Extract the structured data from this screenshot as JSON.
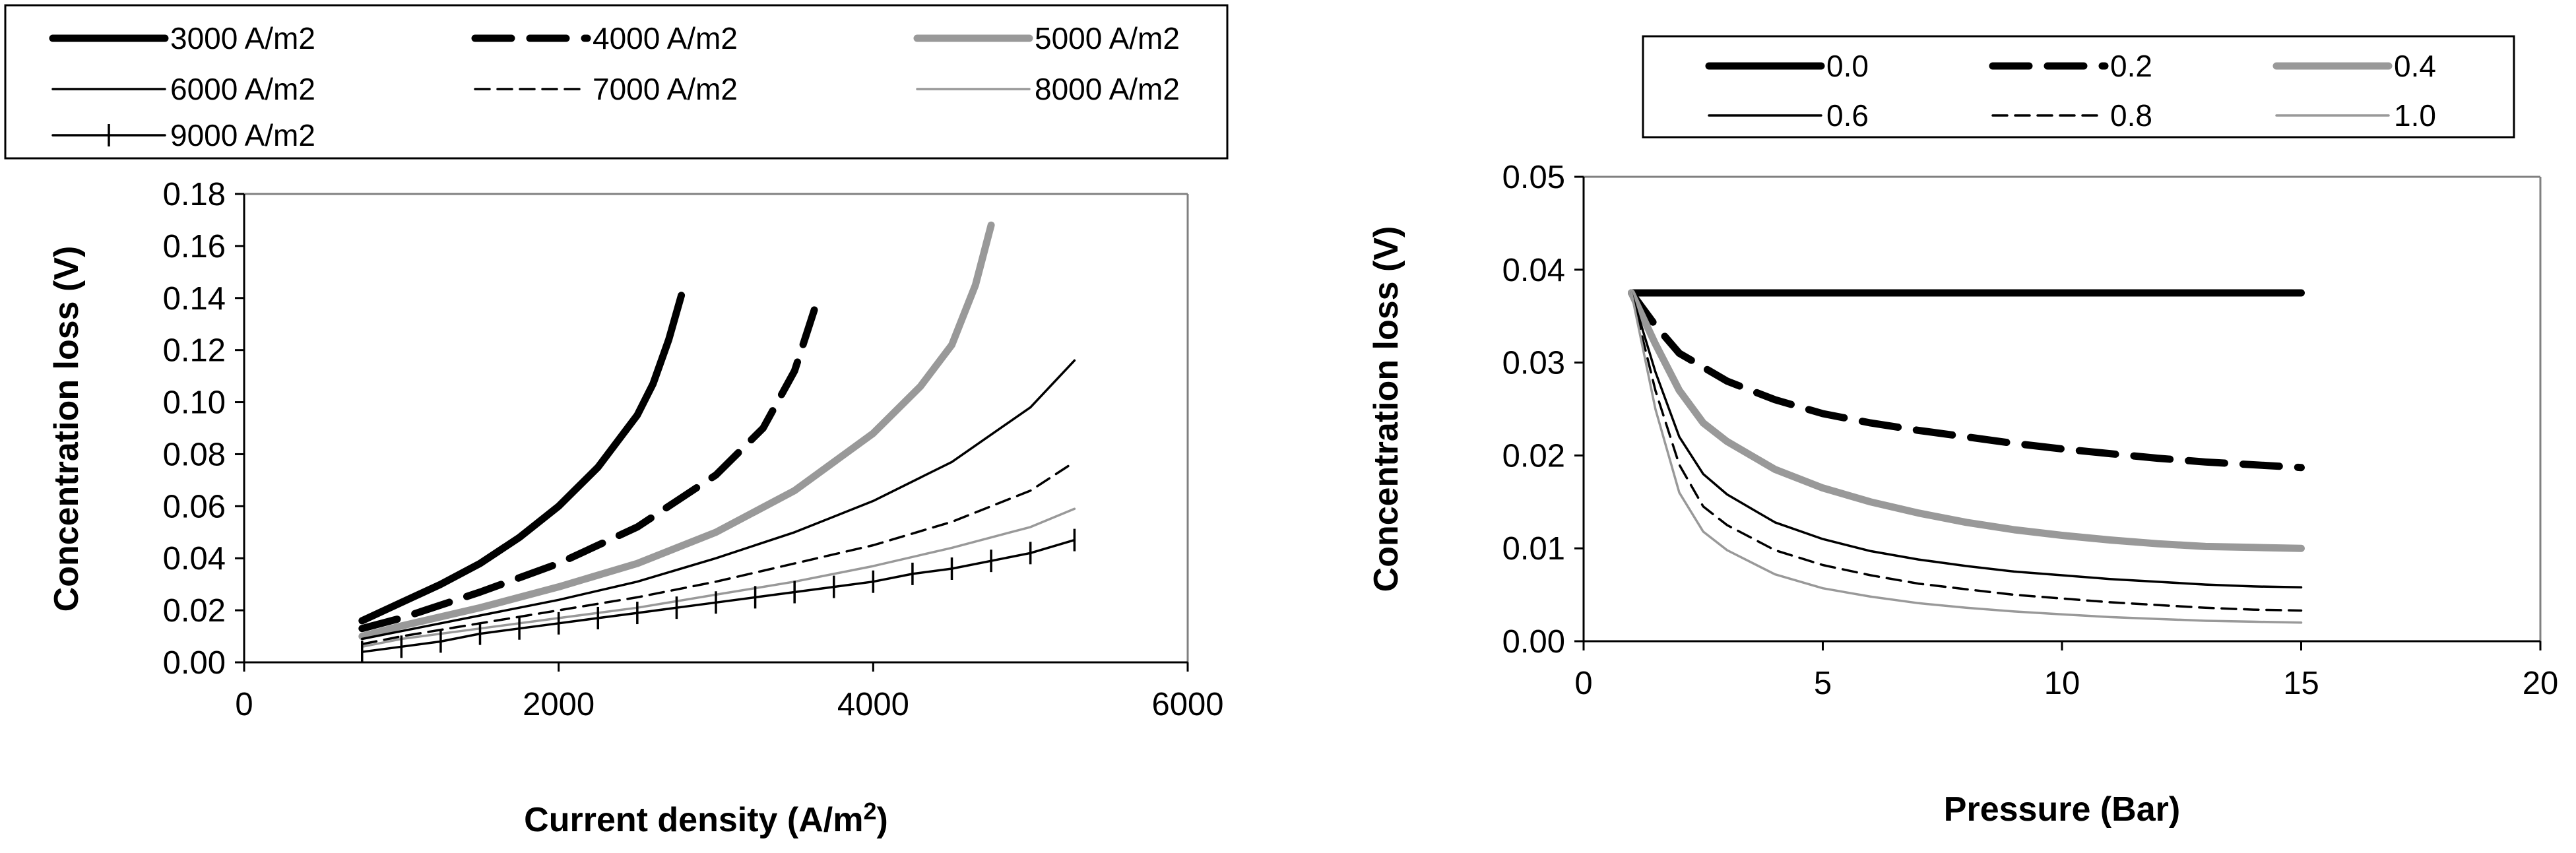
{
  "chart_data": [
    {
      "type": "line",
      "title": "",
      "xlabel": "Current density (A/m",
      "xlabel_superscript": "2",
      "xlabel_suffix": ")",
      "ylabel": "Concentration loss (V)",
      "xlim": [
        0,
        6000
      ],
      "ylim": [
        0,
        0.18
      ],
      "xticks": [
        "0",
        "2000",
        "4000",
        "6000"
      ],
      "yticks": [
        "0.00",
        "0.02",
        "0.04",
        "0.06",
        "0.08",
        "0.10",
        "0.12",
        "0.14",
        "0.16",
        "0.18"
      ],
      "legend_position": "top",
      "series": [
        {
          "name": "3000 A/m2",
          "style": "thick-black",
          "x": [
            750,
            1000,
            1250,
            1500,
            1750,
            2000,
            2250,
            2500,
            2600,
            2700,
            2780
          ],
          "y": [
            0.016,
            0.023,
            0.03,
            0.038,
            0.048,
            0.06,
            0.075,
            0.095,
            0.107,
            0.124,
            0.141
          ]
        },
        {
          "name": "4000 A/m2",
          "style": "thick-black-dashed",
          "x": [
            750,
            1000,
            1500,
            2000,
            2500,
            3000,
            3300,
            3500,
            3650
          ],
          "y": [
            0.013,
            0.017,
            0.027,
            0.038,
            0.052,
            0.072,
            0.09,
            0.112,
            0.14
          ]
        },
        {
          "name": "5000 A/m2",
          "style": "thick-gray",
          "x": [
            750,
            1000,
            1500,
            2000,
            2500,
            3000,
            3500,
            4000,
            4300,
            4500,
            4650,
            4750
          ],
          "y": [
            0.01,
            0.014,
            0.021,
            0.029,
            0.038,
            0.05,
            0.066,
            0.088,
            0.106,
            0.122,
            0.145,
            0.168
          ]
        },
        {
          "name": "6000 A/m2",
          "style": "thin-black",
          "x": [
            750,
            1000,
            1500,
            2000,
            2500,
            3000,
            3500,
            4000,
            4500,
            5000,
            5280
          ],
          "y": [
            0.009,
            0.012,
            0.018,
            0.024,
            0.031,
            0.04,
            0.05,
            0.062,
            0.077,
            0.098,
            0.116
          ]
        },
        {
          "name": "7000 A/m2",
          "style": "thin-black-dashed",
          "x": [
            750,
            1000,
            1500,
            2000,
            2500,
            3000,
            3500,
            4000,
            4500,
            5000,
            5280
          ],
          "y": [
            0.007,
            0.01,
            0.015,
            0.02,
            0.025,
            0.031,
            0.038,
            0.045,
            0.054,
            0.066,
            0.077
          ]
        },
        {
          "name": "8000 A/m2",
          "style": "thin-gray",
          "x": [
            750,
            1000,
            1500,
            2000,
            2500,
            3000,
            3500,
            4000,
            4500,
            5000,
            5280
          ],
          "y": [
            0.006,
            0.009,
            0.013,
            0.017,
            0.021,
            0.026,
            0.031,
            0.037,
            0.044,
            0.052,
            0.059
          ]
        },
        {
          "name": "9000 A/m2",
          "style": "thin-black-plus",
          "x": [
            750,
            1000,
            1250,
            1500,
            1750,
            2000,
            2250,
            2500,
            2750,
            3000,
            3250,
            3500,
            3750,
            4000,
            4250,
            4500,
            4750,
            5000,
            5280
          ],
          "y": [
            0.004,
            0.006,
            0.008,
            0.011,
            0.013,
            0.015,
            0.017,
            0.019,
            0.021,
            0.023,
            0.025,
            0.027,
            0.029,
            0.031,
            0.034,
            0.036,
            0.039,
            0.042,
            0.047
          ]
        }
      ]
    },
    {
      "type": "line",
      "title": "",
      "xlabel": "Pressure (Bar)",
      "ylabel": "Concentration loss (V)",
      "xlim": [
        0,
        20
      ],
      "ylim": [
        0,
        0.05
      ],
      "xticks": [
        "0",
        "5",
        "10",
        "15",
        "20"
      ],
      "yticks": [
        "0.00",
        "0.01",
        "0.02",
        "0.03",
        "0.04",
        "0.05"
      ],
      "legend_position": "top",
      "series": [
        {
          "name": "0.0",
          "style": "thick-black",
          "x": [
            1,
            2,
            3,
            5,
            7,
            10,
            12,
            15
          ],
          "y": [
            0.0375,
            0.0375,
            0.0375,
            0.0375,
            0.0375,
            0.0375,
            0.0375,
            0.0375
          ]
        },
        {
          "name": "0.2",
          "style": "thick-black-dashed",
          "x": [
            1,
            1.5,
            2,
            2.5,
            3,
            4,
            5,
            6,
            7,
            8,
            9,
            10,
            11,
            12,
            13,
            14,
            15
          ],
          "y": [
            0.0375,
            0.034,
            0.031,
            0.0295,
            0.028,
            0.026,
            0.0245,
            0.0235,
            0.0227,
            0.022,
            0.0213,
            0.0207,
            0.0202,
            0.0197,
            0.0193,
            0.019,
            0.0187
          ]
        },
        {
          "name": "0.4",
          "style": "thick-gray",
          "x": [
            1,
            1.5,
            2,
            2.5,
            3,
            4,
            5,
            6,
            7,
            8,
            9,
            10,
            11,
            12,
            13,
            14,
            15
          ],
          "y": [
            0.0375,
            0.032,
            0.027,
            0.0235,
            0.0215,
            0.0185,
            0.0165,
            0.015,
            0.0138,
            0.0128,
            0.012,
            0.0114,
            0.0109,
            0.0105,
            0.0102,
            0.0101,
            0.01
          ]
        },
        {
          "name": "0.6",
          "style": "thin-black",
          "x": [
            1,
            1.5,
            2,
            2.5,
            3,
            4,
            5,
            6,
            7,
            8,
            9,
            10,
            11,
            12,
            13,
            14,
            15
          ],
          "y": [
            0.0375,
            0.029,
            0.022,
            0.018,
            0.0158,
            0.0128,
            0.011,
            0.0097,
            0.0088,
            0.0081,
            0.0075,
            0.0071,
            0.0067,
            0.0064,
            0.0061,
            0.0059,
            0.0058
          ]
        },
        {
          "name": "0.8",
          "style": "thin-black-dashed",
          "x": [
            1,
            1.5,
            2,
            2.5,
            3,
            4,
            5,
            6,
            7,
            8,
            9,
            10,
            11,
            12,
            13,
            14,
            15
          ],
          "y": [
            0.0375,
            0.027,
            0.019,
            0.0145,
            0.0125,
            0.0098,
            0.0082,
            0.0071,
            0.0062,
            0.0056,
            0.005,
            0.0046,
            0.0042,
            0.0039,
            0.0036,
            0.0034,
            0.0033
          ]
        },
        {
          "name": "1.0",
          "style": "thin-gray",
          "x": [
            1,
            1.5,
            2,
            2.5,
            3,
            4,
            5,
            6,
            7,
            8,
            9,
            10,
            11,
            12,
            13,
            14,
            15
          ],
          "y": [
            0.0375,
            0.025,
            0.016,
            0.0118,
            0.0098,
            0.0072,
            0.0057,
            0.0048,
            0.0041,
            0.0036,
            0.0032,
            0.0029,
            0.0026,
            0.0024,
            0.0022,
            0.0021,
            0.002
          ]
        }
      ]
    }
  ]
}
